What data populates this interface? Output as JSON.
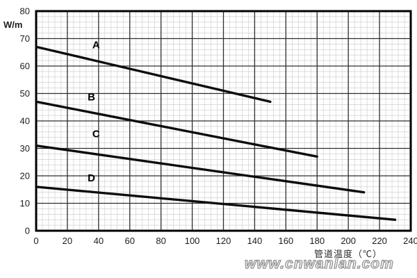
{
  "watermark": "www.cnwanlan.com",
  "chart_data": {
    "type": "line",
    "title": "",
    "ylabel": "W/m",
    "xlabel": "管道温度（℃）",
    "xlim": [
      0,
      240
    ],
    "ylim": [
      0,
      80
    ],
    "x_tick_step": 20,
    "y_tick_step": 10,
    "x_ticks": [
      0,
      20,
      40,
      60,
      80,
      100,
      120,
      140,
      160,
      180,
      200,
      220,
      240
    ],
    "y_ticks": [
      0,
      10,
      20,
      30,
      40,
      50,
      60,
      70,
      80
    ],
    "grid": {
      "major": true,
      "minor": true,
      "minor_x_step": 4,
      "minor_y_step": 2
    },
    "legend_position": "inline-labels",
    "line_color": "#0d0d0d",
    "major_grid_color": "#2e2e2e",
    "minor_grid_color": "#c8c8c8",
    "series": [
      {
        "name": "A",
        "points": [
          [
            0,
            67
          ],
          [
            150,
            47
          ]
        ],
        "label_at": [
          36,
          66.5
        ]
      },
      {
        "name": "B",
        "points": [
          [
            0,
            47
          ],
          [
            180,
            27
          ]
        ],
        "label_at": [
          33,
          47.5
        ]
      },
      {
        "name": "C",
        "points": [
          [
            0,
            31
          ],
          [
            210,
            14
          ]
        ],
        "label_at": [
          36,
          34.0
        ]
      },
      {
        "name": "D",
        "points": [
          [
            0,
            16
          ],
          [
            230,
            4
          ]
        ],
        "label_at": [
          33,
          18.0
        ]
      }
    ]
  }
}
